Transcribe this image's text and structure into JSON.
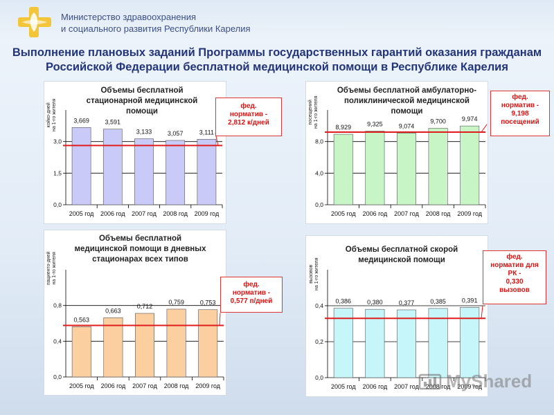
{
  "header": {
    "ministry_line1": "Министерство здравоохранения",
    "ministry_line2": "и социального развития Республики Карелия",
    "title_line1": "Выполнение плановых заданий Программы государственных гарантий оказания гражданам",
    "title_line2": "Российской Федерации бесплатной медицинской помощи в Республике Карелия"
  },
  "watermark": "MyShared",
  "chart_data": [
    {
      "type": "bar",
      "title": [
        "Объемы бесплатной",
        "стационарной медицинской",
        "помощи"
      ],
      "ylabel": [
        "койко-дней",
        "на 1-го жителя"
      ],
      "categories": [
        "2005 год",
        "2006 год",
        "2007 год",
        "2008 год",
        "2009 год"
      ],
      "values": [
        3.669,
        3.591,
        3.133,
        3.057,
        3.111
      ],
      "value_labels": [
        "3,669",
        "3,591",
        "3,133",
        "3,057",
        "3,111"
      ],
      "ylim": [
        0,
        4.5
      ],
      "yticks": [
        0,
        1.5,
        3.0
      ],
      "ytick_labels": [
        "0,0",
        "1,5",
        "3,0"
      ],
      "bar_color": "#c9caf7",
      "norm_value": 2.812,
      "norm_color": "#e01b1b",
      "note": [
        "фед.",
        "норматив -",
        "2,812 к/дней"
      ]
    },
    {
      "type": "bar",
      "title": [
        "Объемы бесплатной амбулаторно-",
        "поликлинической медицинской",
        "помощи"
      ],
      "ylabel": [
        "посещений",
        "на 1-го жителя"
      ],
      "categories": [
        "2005 год",
        "2006 год",
        "2007 год",
        "2008 год",
        "2009 год"
      ],
      "values": [
        8.929,
        9.325,
        9.074,
        9.7,
        9.974
      ],
      "value_labels": [
        "8,929",
        "9,325",
        "9,074",
        "9,700",
        "9,974"
      ],
      "ylim": [
        0,
        12
      ],
      "yticks": [
        0,
        4.0,
        8.0
      ],
      "ytick_labels": [
        "0,0",
        "4,0",
        "8,0"
      ],
      "bar_color": "#c8f5c6",
      "norm_value": 9.198,
      "norm_color": "#e01b1b",
      "note": [
        "фед.",
        "норматив -",
        "9,198",
        "посещений"
      ]
    },
    {
      "type": "bar",
      "title": [
        "Объемы бесплатной",
        "медицинской помощи в дневных",
        "стационарах всех типов"
      ],
      "ylabel": [
        "пациенто-дней",
        "на 1-го жителя"
      ],
      "categories": [
        "2005 год",
        "2006 год",
        "2007 год",
        "2008 год",
        "2009 год"
      ],
      "values": [
        0.563,
        0.663,
        0.712,
        0.759,
        0.753
      ],
      "value_labels": [
        "0,563",
        "0,663",
        "0,712",
        "0,759",
        "0,753"
      ],
      "ylim": [
        0,
        1.2
      ],
      "yticks": [
        0,
        0.4,
        0.8
      ],
      "ytick_labels": [
        "0,0",
        "0,4",
        "0,8"
      ],
      "bar_color": "#fccfa0",
      "norm_value": 0.577,
      "norm_color": "#e01b1b",
      "note": [
        "фед.",
        "норматив -",
        "0,577 п/дней"
      ]
    },
    {
      "type": "bar",
      "title": [
        "Объемы бесплатной скорой",
        "медицинской помощи"
      ],
      "ylabel": [
        "вызовов",
        "на 1-го жителя"
      ],
      "categories": [
        "2005 год",
        "2006 год",
        "2007 год",
        "2008 год",
        "2009 год"
      ],
      "values": [
        0.386,
        0.38,
        0.377,
        0.385,
        0.391
      ],
      "value_labels": [
        "0,386",
        "0,380",
        "0,377",
        "0,385",
        "0,391"
      ],
      "ylim": [
        0,
        0.6
      ],
      "yticks": [
        0,
        0.2,
        0.4
      ],
      "ytick_labels": [
        "0,0",
        "0,2",
        "0,4"
      ],
      "bar_color": "#c6f6fa",
      "norm_value": 0.33,
      "norm_color": "#e01b1b",
      "note": [
        "фед.",
        "норматив для",
        "РК -",
        "0,330",
        "вызовов"
      ]
    }
  ]
}
